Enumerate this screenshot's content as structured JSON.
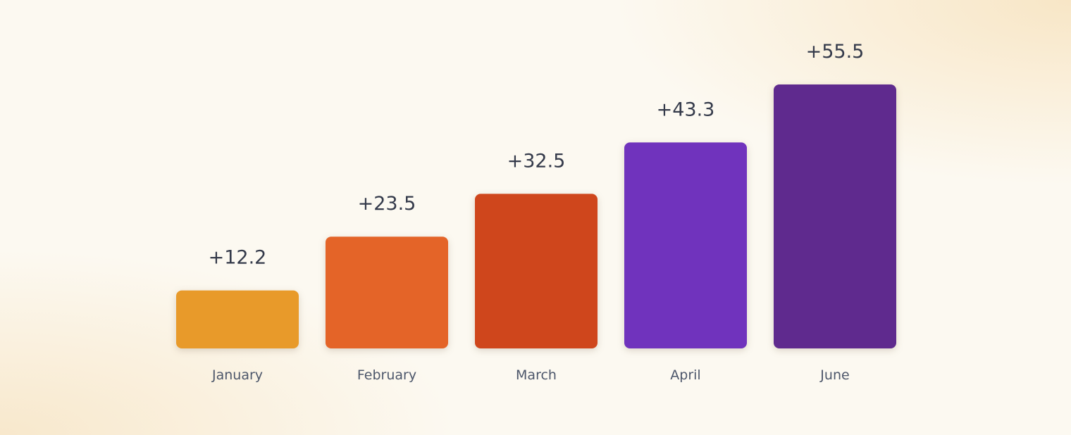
{
  "chart_data": {
    "type": "bar",
    "categories": [
      "January",
      "February",
      "March",
      "April",
      "June"
    ],
    "values": [
      12.2,
      23.5,
      32.5,
      43.3,
      55.5
    ],
    "value_labels": [
      "+12.2",
      "+23.5",
      "+32.5",
      "+43.3",
      "+55.5"
    ],
    "colors": [
      "#e89a2a",
      "#e46428",
      "#cf461c",
      "#7033bd",
      "#5f2a8e"
    ]
  }
}
